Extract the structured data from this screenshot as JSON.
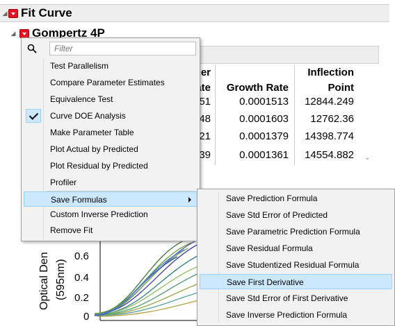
{
  "report": {
    "fit_curve_title": "Fit Curve",
    "model_title": "Gompertz 4P"
  },
  "param_table": {
    "columns": [
      {
        "line1": "er",
        "line2": "ate"
      },
      {
        "line1": "",
        "line2": "Growth Rate"
      },
      {
        "line1": "Inflection",
        "line2": "Point"
      }
    ],
    "rows": [
      {
        "c1": "51",
        "growth": "0.0001513",
        "inflection": "12844.249"
      },
      {
        "c1": "48",
        "growth": "0.0001603",
        "inflection": "12762.36"
      },
      {
        "c1": "21",
        "growth": "0.0001379",
        "inflection": "14398.774"
      },
      {
        "c1": "39",
        "growth": "0.0001361",
        "inflection": "14554.882"
      }
    ]
  },
  "plot": {
    "ylabel_line1": "Optical Den",
    "ylabel_line2": "(595nm)",
    "yticks": [
      "0.6",
      "0.4",
      "0.2",
      "0"
    ]
  },
  "menu": {
    "filter_placeholder": "Filter",
    "items": [
      {
        "label": "Test Parallelism",
        "checked": false
      },
      {
        "label": "Compare Parameter Estimates",
        "checked": false
      },
      {
        "label": "Equivalence Test",
        "checked": false
      },
      {
        "label": "Curve DOE Analysis",
        "checked": true
      },
      {
        "label": "Make Parameter Table",
        "checked": false
      },
      {
        "label": "Plot Actual by Predicted",
        "checked": false
      },
      {
        "label": "Plot Residual by Predicted",
        "checked": false
      },
      {
        "label": "Profiler",
        "checked": false
      },
      {
        "label": "Save Formulas",
        "checked": false,
        "submenu": true
      },
      {
        "label": "Custom Inverse Prediction",
        "checked": false
      },
      {
        "label": "Remove Fit",
        "checked": false
      }
    ]
  },
  "submenu": {
    "items": [
      {
        "label": "Save Prediction Formula"
      },
      {
        "label": "Save Std Error of Predicted"
      },
      {
        "label": "Save Parametric Prediction Formula"
      },
      {
        "label": "Save Residual Formula"
      },
      {
        "label": "Save Studentized Residual Formula"
      },
      {
        "label": "Save First Derivative"
      },
      {
        "label": "Save Std Error of First Derivative"
      },
      {
        "label": "Save Inverse Prediction Formula"
      }
    ]
  },
  "colors": {
    "highlight": "#cce8ff",
    "menu_bg": "#f2f2f2",
    "red_button": "#e81123"
  },
  "icons": {
    "search": "search-icon",
    "disclosure": "disclosure-triangle-icon",
    "red_triangle": "red-triangle-menu-icon",
    "check": "checkmark-icon",
    "submenu_arrow": "submenu-arrow-icon"
  }
}
